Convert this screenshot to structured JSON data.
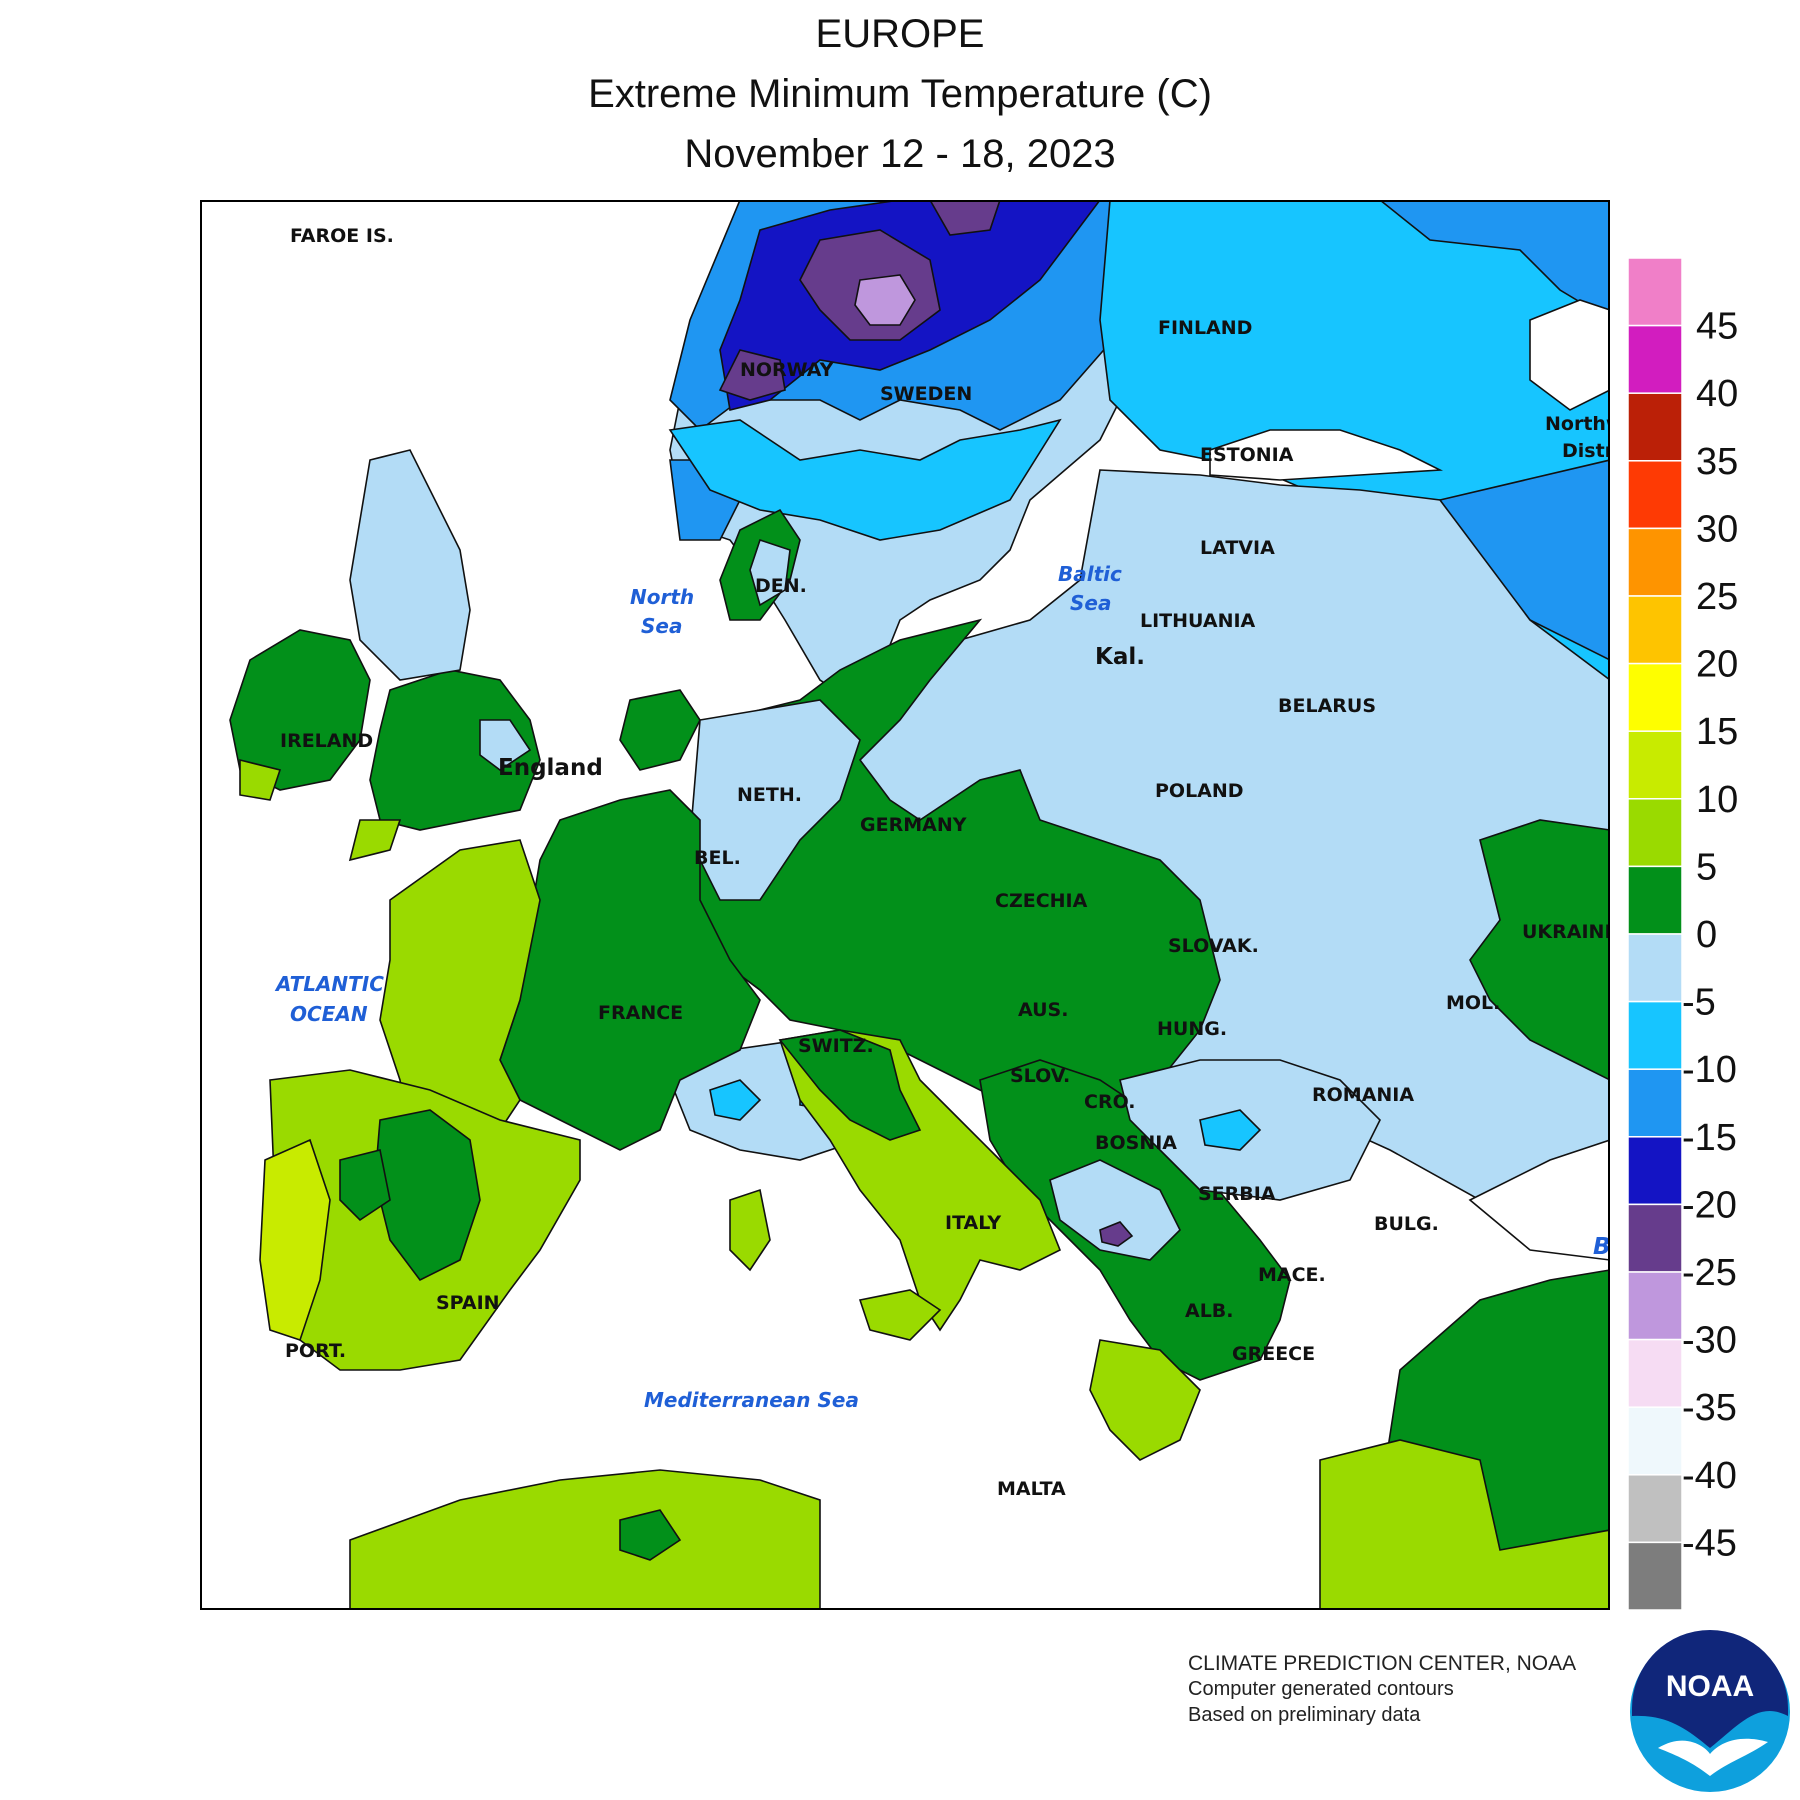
{
  "title": {
    "line1": "EUROPE",
    "line2": "Extreme Minimum Temperature (C)",
    "line3": "November 12 - 18, 2023"
  },
  "labels": {
    "faroe": "FAROE IS.",
    "norway": "NORWAY",
    "sweden": "SWEDEN",
    "finland": "FINLAND",
    "estonia": "ESTONIA",
    "latvia": "LATVIA",
    "lithuania": "LITHUANIA",
    "kal": "Kal.",
    "belarus": "BELARUS",
    "northwest_1": "Northw",
    "northwest_2": "Distri",
    "denmark": "DEN.",
    "north_sea_1": "North",
    "north_sea_2": "Sea",
    "baltic_sea_1": "Baltic",
    "baltic_sea_2": "Sea",
    "ireland": "IRELAND",
    "england": "England",
    "netherlands": "NETH.",
    "germany": "GERMANY",
    "poland": "POLAND",
    "belgium": "BEL.",
    "czechia": "CZECHIA",
    "slovakia": "SLOVAK.",
    "ukraine": "UKRAINE",
    "atlantic_1": "ATLANTIC",
    "atlantic_2": "OCEAN",
    "france": "FRANCE",
    "switzerland": "SWITZ.",
    "austria": "AUS.",
    "hungary": "HUNG.",
    "moldova": "MOL.",
    "slovenia": "SLOV.",
    "croatia": "CRO.",
    "romania": "ROMANIA",
    "bosnia": "BOSNIA",
    "serbia": "SERBIA",
    "italy": "ITALY",
    "bulgaria": "BULG.",
    "macedonia": "MACE.",
    "spain": "SPAIN",
    "albania": "ALB.",
    "portugal": "PORT.",
    "greece": "GREECE",
    "mediterranean": "Mediterranean Sea",
    "malta": "MALTA",
    "edge_b": "B"
  },
  "legend": {
    "bins": [
      {
        "label": "45",
        "color": "#f07fc8"
      },
      {
        "label": "40",
        "color": "#d21dbf"
      },
      {
        "label": "35",
        "color": "#bb2007"
      },
      {
        "label": "30",
        "color": "#fe3a04"
      },
      {
        "label": "25",
        "color": "#fe9400"
      },
      {
        "label": "20",
        "color": "#fec400"
      },
      {
        "label": "15",
        "color": "#fefe00"
      },
      {
        "label": "10",
        "color": "#c8eb00"
      },
      {
        "label": "5",
        "color": "#9ada00"
      },
      {
        "label": "0",
        "color": "#02901a"
      },
      {
        "label": "-5",
        "color": "#b3dcf6"
      },
      {
        "label": "-10",
        "color": "#17c5ff"
      },
      {
        "label": "-15",
        "color": "#1f96f2"
      },
      {
        "label": "-20",
        "color": "#1414c4"
      },
      {
        "label": "-25",
        "color": "#663c8c"
      },
      {
        "label": "-30",
        "color": "#bf97dd"
      },
      {
        "label": "-35",
        "color": "#f6dcf3"
      },
      {
        "label": "-40",
        "color": "#eff8fc"
      },
      {
        "label": "-45",
        "color": "#c0c0c0"
      },
      {
        "label": "",
        "color": "#7d7d7d"
      }
    ]
  },
  "credits": {
    "line1": "CLIMATE PREDICTION CENTER, NOAA",
    "line2": "Computer generated contours",
    "line3": "Based on preliminary data"
  },
  "logo": {
    "text": "NOAA",
    "icon": "noaa-logo-icon",
    "colors": {
      "dark": "#10267a",
      "light": "#0ea0dd"
    }
  },
  "colors": {
    "land_green_dark": "#02901a",
    "land_green_mid": "#9ada00",
    "land_green_light": "#c8eb00",
    "cold_light": "#b3dcf6",
    "cold_cyan": "#17c5ff",
    "cold_blue": "#1f96f2",
    "cold_navy": "#1414c4",
    "cold_purple": "#663c8c",
    "cold_lavender": "#bf97dd",
    "sea_label": "#1f5fd6"
  }
}
